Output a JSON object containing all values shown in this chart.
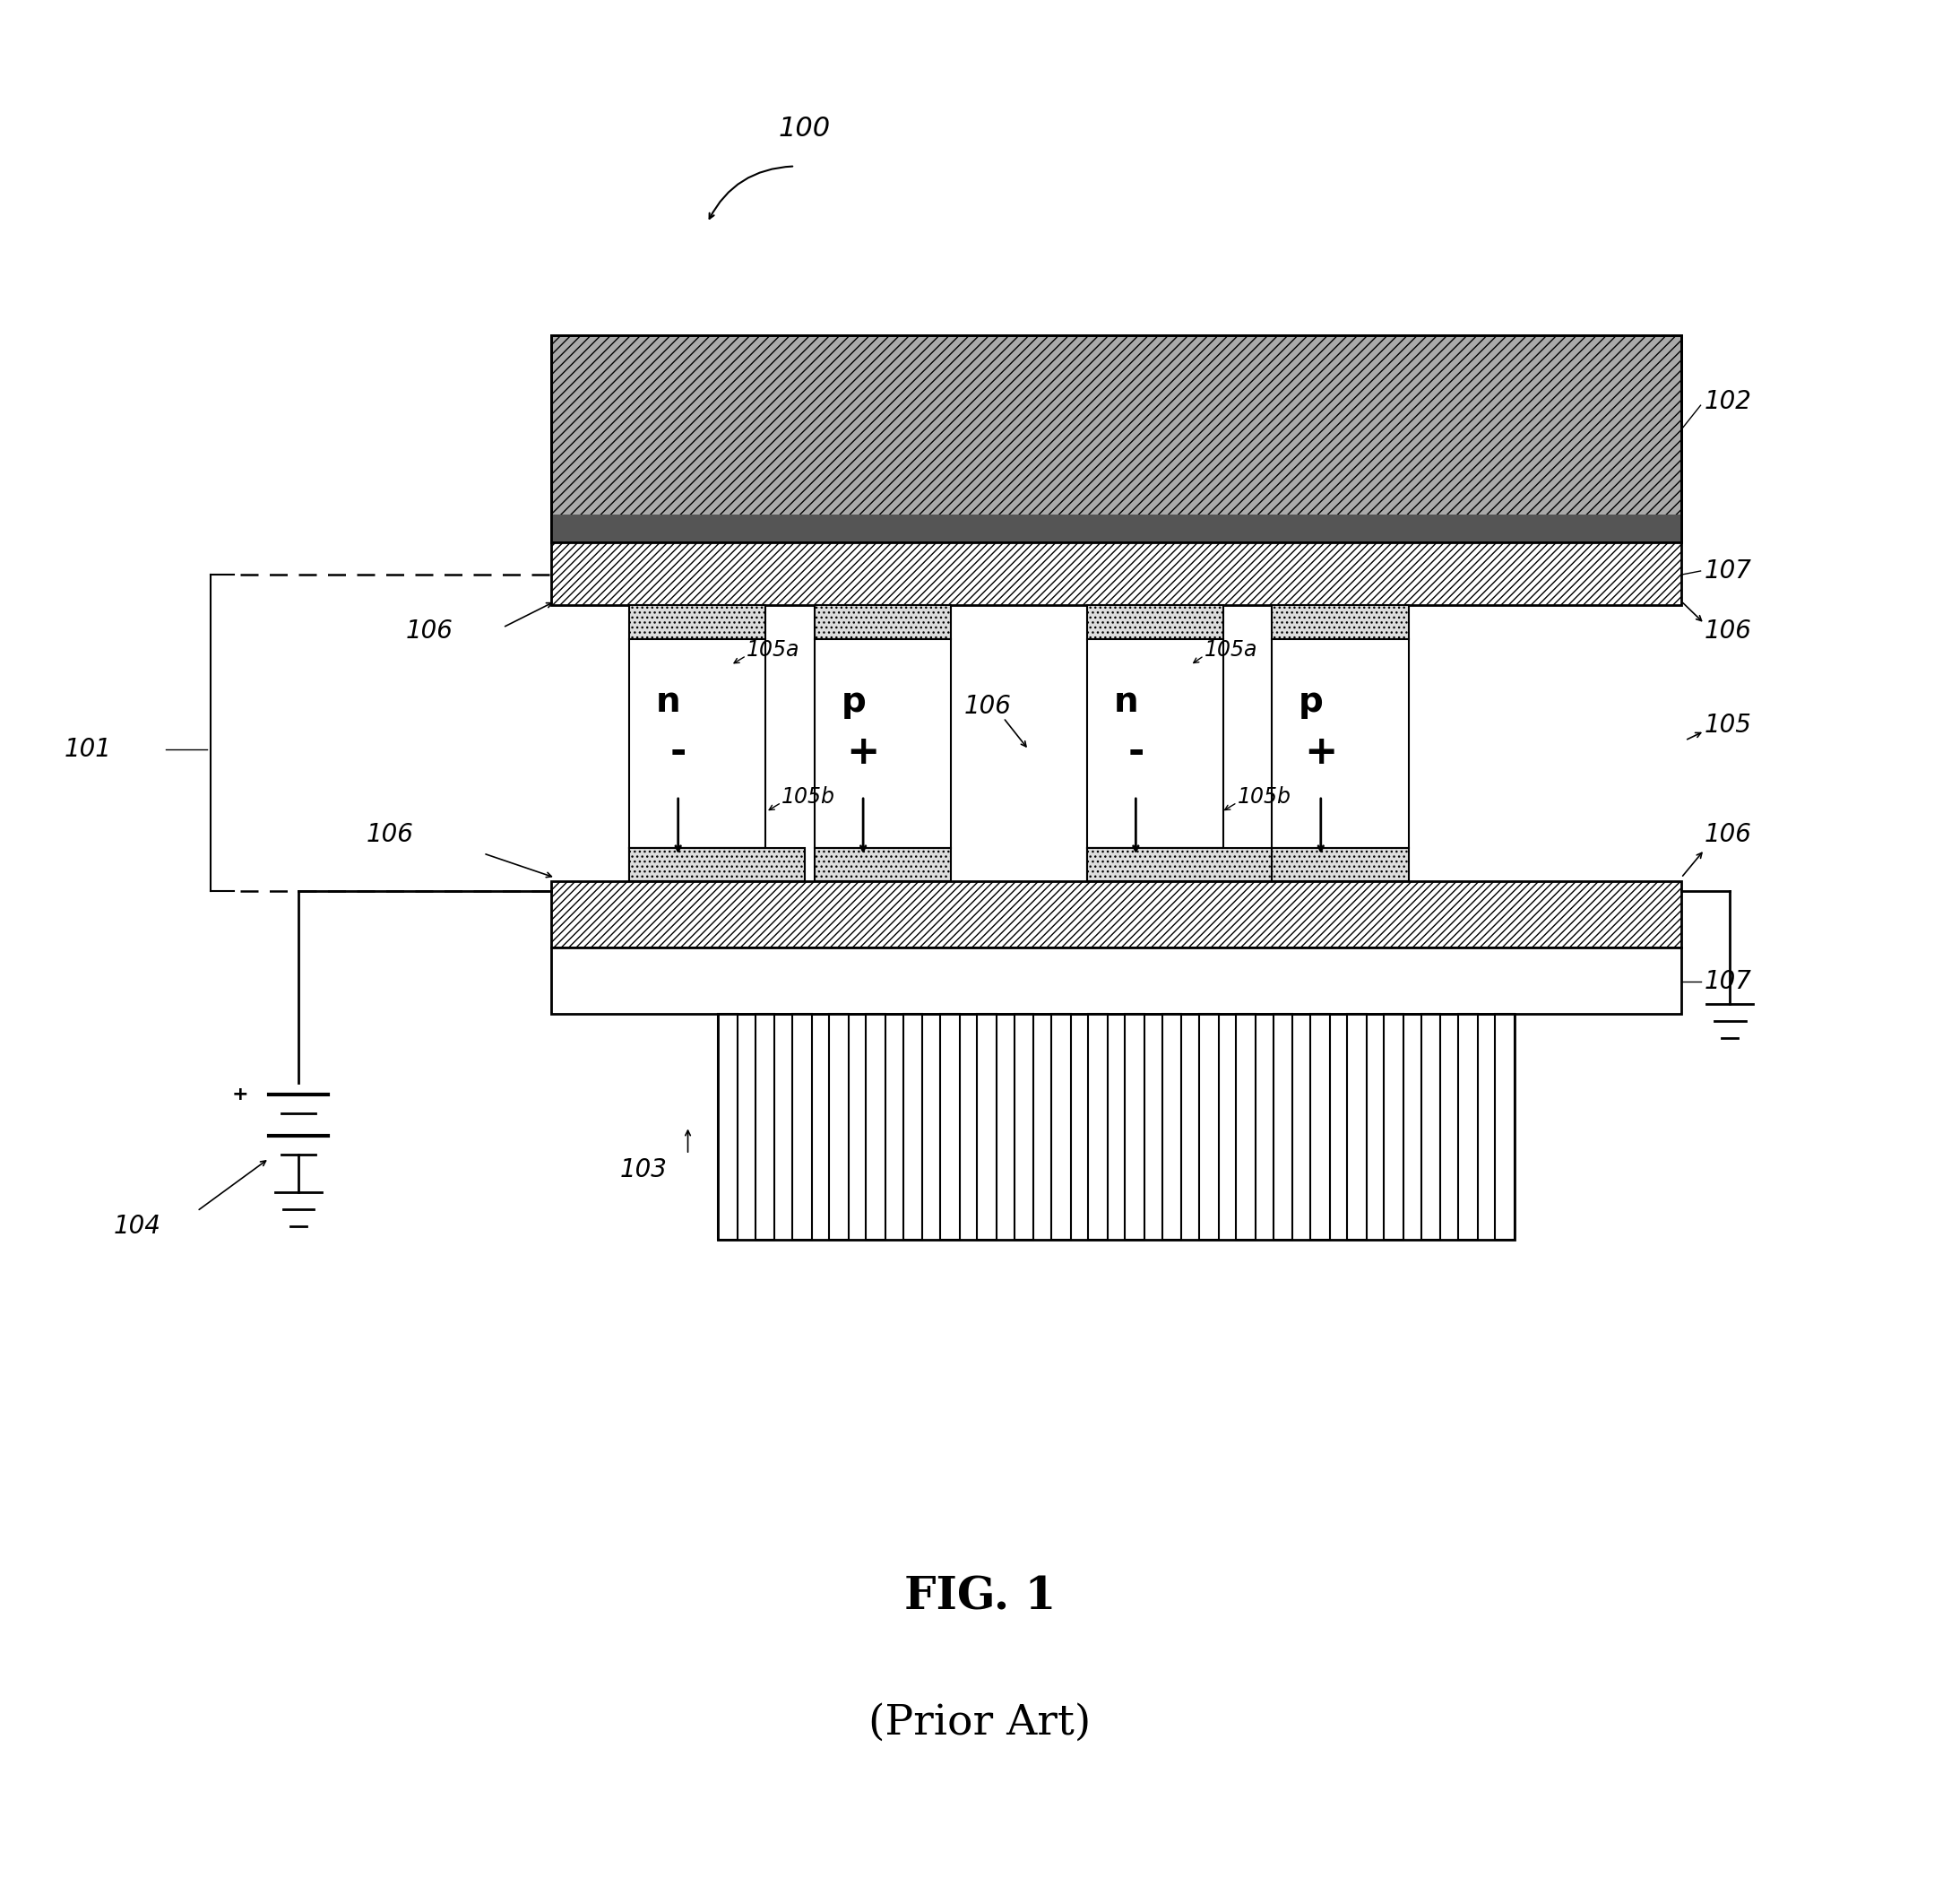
{
  "fig_width": 21.87,
  "fig_height": 21.14,
  "bg_color": "#ffffff",
  "line_color": "#000000",
  "title": "FIG. 1",
  "subtitle": "(Prior Art)",
  "title_fontsize": 36,
  "subtitle_fontsize": 34,
  "annotation_fontsize": 20,
  "np_fontsize": 28,
  "ref_label_100": "100",
  "ref_label_101": "101",
  "ref_label_102": "102",
  "ref_label_103": "103",
  "ref_label_104": "104",
  "ref_label_105": "105",
  "ref_label_105a": "105a",
  "ref_label_105b": "105b",
  "ref_label_106": "106",
  "ref_label_107": "107"
}
